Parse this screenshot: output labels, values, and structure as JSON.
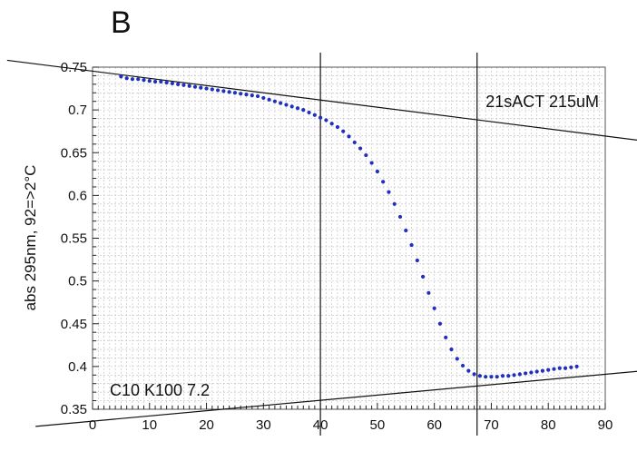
{
  "panel_label": "B",
  "chart_data": {
    "type": "scatter",
    "title": "",
    "xlabel": "",
    "ylabel": "abs 295nm, 92=>2°C",
    "xlim": [
      0,
      90
    ],
    "ylim": [
      0.35,
      0.75
    ],
    "x_ticks": [
      0,
      10,
      20,
      30,
      40,
      50,
      60,
      70,
      80,
      90
    ],
    "y_ticks": [
      0.35,
      0.4,
      0.45,
      0.5,
      0.55,
      0.6,
      0.65,
      0.7,
      0.75
    ],
    "grid": true,
    "annotations": {
      "top_right": "21sACT 215uM",
      "bottom_left": "C10 K100 7.2"
    },
    "marker_color": "#1f2fbf",
    "series": [
      {
        "x": [
          5,
          6,
          7,
          8,
          9,
          10,
          11,
          12,
          13,
          14,
          15,
          16,
          17,
          18,
          19,
          20,
          21,
          22,
          23,
          24,
          25,
          26,
          27,
          28,
          29,
          30,
          31,
          32,
          33,
          34,
          35,
          36,
          37,
          38,
          39,
          40,
          41,
          42,
          43,
          44,
          45,
          46,
          47,
          48,
          49,
          50,
          51,
          52,
          53,
          54,
          55,
          56,
          57,
          58,
          59,
          60,
          61,
          62,
          63,
          64,
          65,
          66,
          67,
          68,
          69,
          70,
          71,
          72,
          73,
          74,
          75,
          76,
          77,
          78,
          79,
          80,
          81,
          82,
          83,
          84,
          85
        ],
        "y": [
          0.739,
          0.737,
          0.736,
          0.736,
          0.735,
          0.734,
          0.733,
          0.733,
          0.732,
          0.731,
          0.73,
          0.729,
          0.728,
          0.727,
          0.726,
          0.725,
          0.724,
          0.723,
          0.722,
          0.721,
          0.72,
          0.719,
          0.718,
          0.717,
          0.716,
          0.714,
          0.712,
          0.71,
          0.708,
          0.706,
          0.704,
          0.702,
          0.7,
          0.697,
          0.694,
          0.691,
          0.688,
          0.684,
          0.68,
          0.675,
          0.669,
          0.662,
          0.655,
          0.647,
          0.638,
          0.628,
          0.616,
          0.604,
          0.59,
          0.575,
          0.559,
          0.542,
          0.524,
          0.505,
          0.486,
          0.468,
          0.45,
          0.434,
          0.42,
          0.409,
          0.401,
          0.395,
          0.391,
          0.389,
          0.388,
          0.388,
          0.388,
          0.389,
          0.389,
          0.39,
          0.391,
          0.392,
          0.393,
          0.394,
          0.395,
          0.396,
          0.397,
          0.398,
          0.398,
          0.399,
          0.4
        ]
      }
    ],
    "baselines": [
      {
        "name": "upper",
        "x": [
          -15,
          100
        ],
        "y": [
          0.758,
          0.661
        ]
      },
      {
        "name": "lower",
        "x": [
          -10,
          100
        ],
        "y": [
          0.33,
          0.397
        ]
      }
    ],
    "vertical_lines": [
      40,
      67.5
    ]
  }
}
